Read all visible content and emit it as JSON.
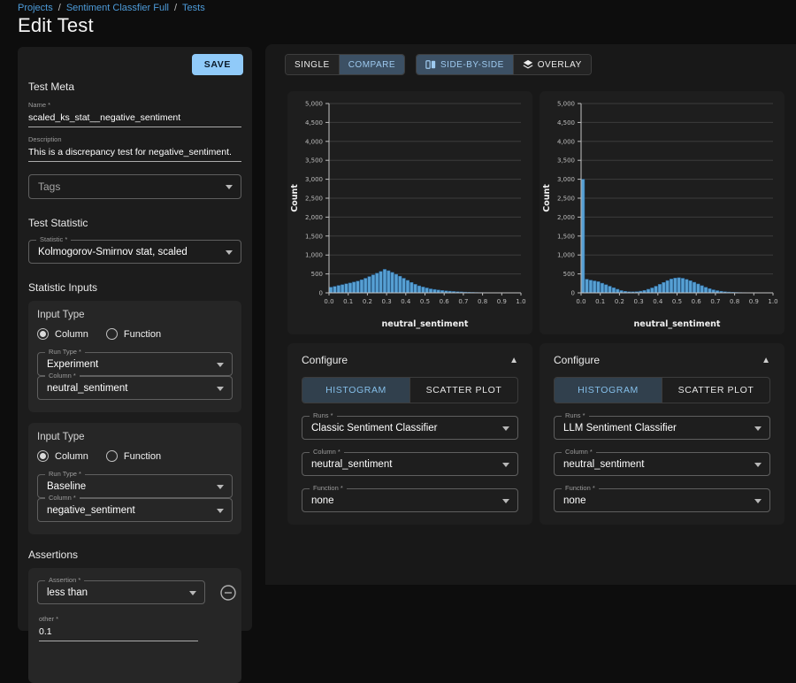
{
  "colors": {
    "accent_blue": "#90caf9",
    "link_blue": "#4d9bd9",
    "bar_fill": "#57a0d3",
    "bar_stroke": "#2e6da4",
    "selected_toggle_bg": "#3c5064",
    "panel_bg": "#1c1c1c",
    "card_bg": "#262626"
  },
  "breadcrumb": {
    "separator": "/",
    "items": [
      "Projects",
      "Sentiment Classfier Full",
      "Tests"
    ]
  },
  "page_title": "Edit Test",
  "left_panel": {
    "save_label": "SAVE",
    "test_meta": {
      "heading": "Test Meta",
      "name_label": "Name *",
      "name_value": "scaled_ks_stat__negative_sentiment",
      "description_label": "Description",
      "description_value": "This is a discrepancy test for negative_sentiment.",
      "tags_placeholder": "Tags"
    },
    "test_statistic": {
      "heading": "Test Statistic",
      "statistic_label": "Statistic *",
      "statistic_value": "Kolmogorov-Smirnov stat, scaled"
    },
    "statistic_inputs": {
      "heading": "Statistic Inputs",
      "groups": [
        {
          "input_type_label": "Input Type",
          "radio_column": "Column",
          "radio_function": "Function",
          "selected_radio": "Column",
          "run_type_label": "Run Type *",
          "run_type_value": "Experiment",
          "column_label": "Column *",
          "column_value": "neutral_sentiment"
        },
        {
          "input_type_label": "Input Type",
          "radio_column": "Column",
          "radio_function": "Function",
          "selected_radio": "Column",
          "run_type_label": "Run Type *",
          "run_type_value": "Baseline",
          "column_label": "Column *",
          "column_value": "negative_sentiment"
        }
      ]
    },
    "assertions": {
      "heading": "Assertions",
      "assertion_label": "Assertion *",
      "assertion_value": "less than",
      "other_label": "other *",
      "other_value": "0.1"
    }
  },
  "view_toggle": {
    "single": "SINGLE",
    "compare": "COMPARE",
    "side_by_side": "SIDE-BY-SIDE",
    "overlay": "OVERLAY",
    "selected": [
      "COMPARE",
      "SIDE-BY-SIDE"
    ]
  },
  "configure_panels": [
    {
      "heading": "Configure",
      "tab_histogram": "HISTOGRAM",
      "tab_scatter": "SCATTER PLOT",
      "selected_tab": "HISTOGRAM",
      "runs_label": "Runs *",
      "runs_value": "Classic Sentiment Classifier",
      "column_label": "Column *",
      "column_value": "neutral_sentiment",
      "function_label": "Function *",
      "function_value": "none"
    },
    {
      "heading": "Configure",
      "tab_histogram": "HISTOGRAM",
      "tab_scatter": "SCATTER PLOT",
      "selected_tab": "HISTOGRAM",
      "runs_label": "Runs *",
      "runs_value": "LLM Sentiment Classifier",
      "column_label": "Column *",
      "column_value": "neutral_sentiment",
      "function_label": "Function *",
      "function_value": "none"
    }
  ],
  "chart_data": [
    {
      "type": "bar",
      "title": "",
      "xlabel": "neutral_sentiment",
      "ylabel": "Count",
      "xlim": [
        0,
        1
      ],
      "ylim": [
        0,
        5000
      ],
      "grid": true,
      "bin_start": 0,
      "bin_width": 0.02,
      "xticks": [
        0.0,
        0.1,
        0.2,
        0.3,
        0.4,
        0.5,
        0.6,
        0.7,
        0.8,
        0.9,
        1.0
      ],
      "yticks": [
        0,
        500,
        1000,
        1500,
        2000,
        2500,
        3000,
        3500,
        4000,
        4500,
        5000
      ],
      "values": [
        150,
        170,
        195,
        215,
        240,
        260,
        285,
        310,
        345,
        385,
        430,
        475,
        520,
        565,
        620,
        585,
        540,
        490,
        440,
        385,
        330,
        275,
        225,
        185,
        155,
        130,
        105,
        90,
        75,
        62,
        52,
        44,
        36,
        30,
        25,
        20,
        16,
        13,
        10,
        8,
        7,
        6,
        5,
        4,
        3,
        3,
        2,
        2,
        1,
        1
      ]
    },
    {
      "type": "bar",
      "title": "",
      "xlabel": "neutral_sentiment",
      "ylabel": "Count",
      "xlim": [
        0,
        1
      ],
      "ylim": [
        0,
        5000
      ],
      "grid": true,
      "bin_start": 0,
      "bin_width": 0.02,
      "xticks": [
        0.0,
        0.1,
        0.2,
        0.3,
        0.4,
        0.5,
        0.6,
        0.7,
        0.8,
        0.9,
        1.0
      ],
      "yticks": [
        0,
        500,
        1000,
        1500,
        2000,
        2500,
        3000,
        3500,
        4000,
        4500,
        5000
      ],
      "values": [
        3000,
        360,
        335,
        315,
        295,
        255,
        215,
        175,
        135,
        95,
        60,
        40,
        30,
        28,
        32,
        45,
        65,
        95,
        130,
        175,
        225,
        275,
        325,
        365,
        390,
        400,
        385,
        355,
        320,
        280,
        235,
        190,
        148,
        110,
        80,
        58,
        42,
        30,
        22,
        16,
        12,
        9,
        7,
        5,
        4,
        3,
        2,
        2,
        1,
        1
      ]
    }
  ]
}
